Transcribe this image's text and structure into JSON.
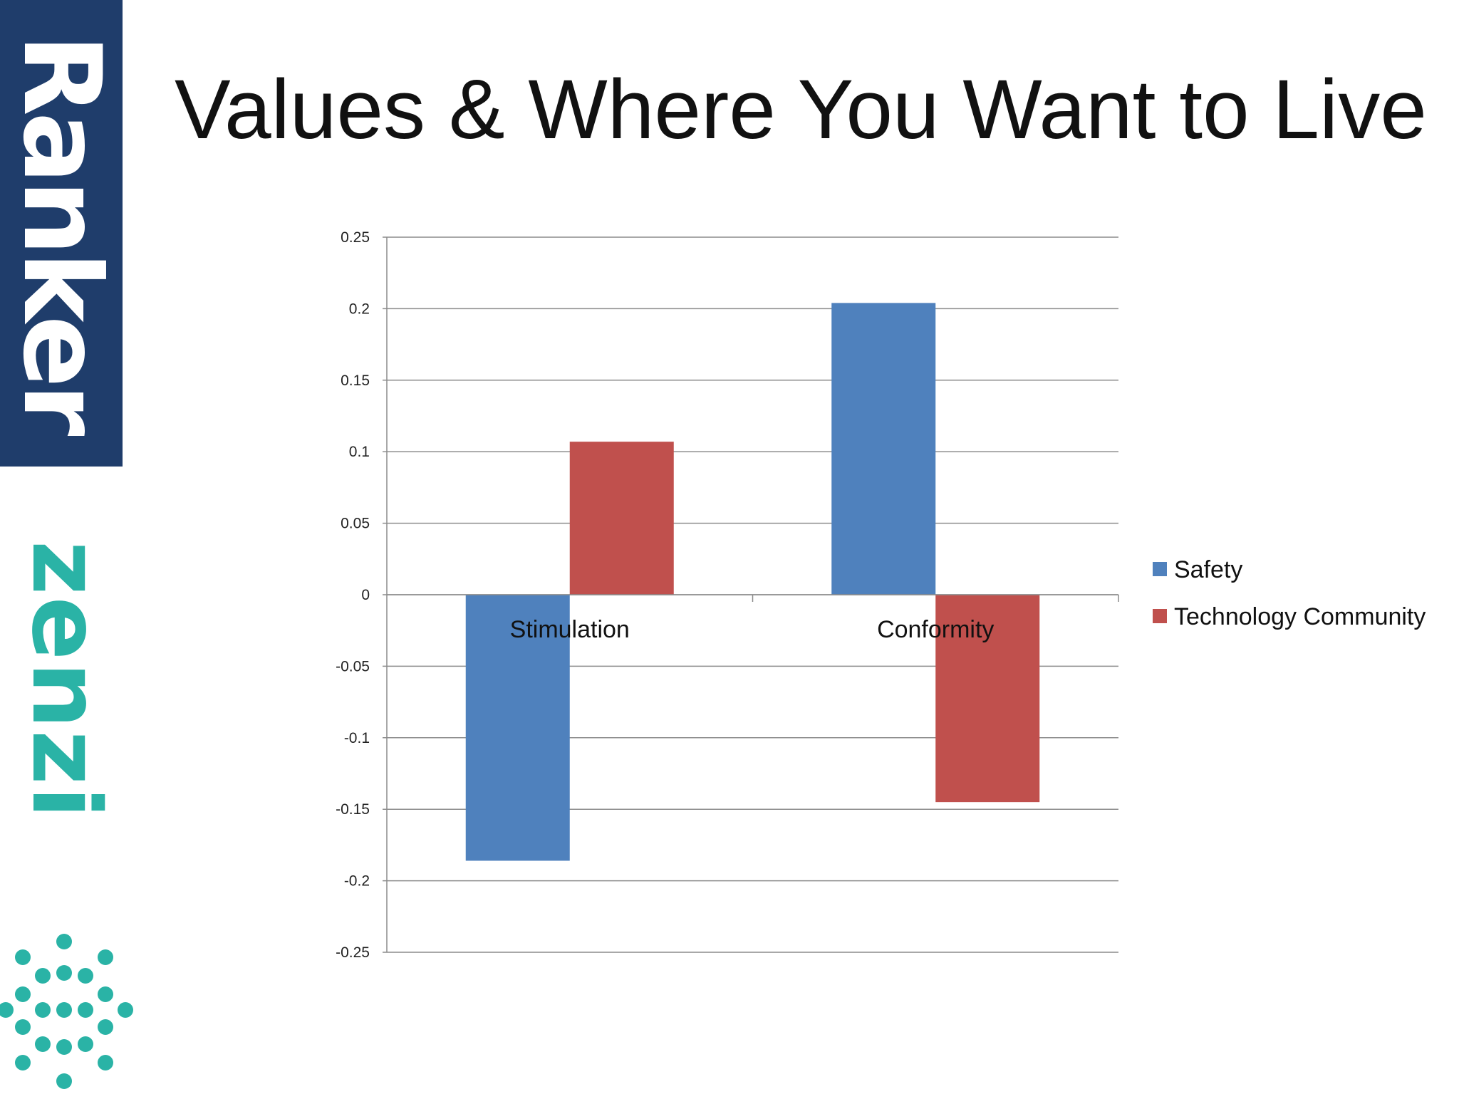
{
  "branding": {
    "ranker_text": "Ranker",
    "zenzi_text": "zenzi",
    "ranker_bg_color": "#1f3d6b",
    "zenzi_color": "#2ab3a6"
  },
  "slide": {
    "title": "Values & Where You Want to Live"
  },
  "chart_data": {
    "type": "bar",
    "title": "",
    "xlabel": "",
    "ylabel": "",
    "categories": [
      "Stimulation",
      "Conformity"
    ],
    "series": [
      {
        "name": "Safety",
        "values": [
          -0.186,
          0.204
        ],
        "color": "#4f81bd"
      },
      {
        "name": "Technology Community",
        "values": [
          0.107,
          -0.145
        ],
        "color": "#c0504d"
      }
    ],
    "ylim": [
      -0.25,
      0.25
    ],
    "yticks": [
      "0.25",
      "0.2",
      "0.15",
      "0.1",
      "0.05",
      "0",
      "-0.05",
      "-0.1",
      "-0.15",
      "-0.2",
      "-0.25"
    ],
    "ytick_values": [
      0.25,
      0.2,
      0.15,
      0.1,
      0.05,
      0,
      -0.05,
      -0.1,
      -0.15,
      -0.2,
      -0.25
    ],
    "grid": true,
    "legend_position": "right"
  }
}
